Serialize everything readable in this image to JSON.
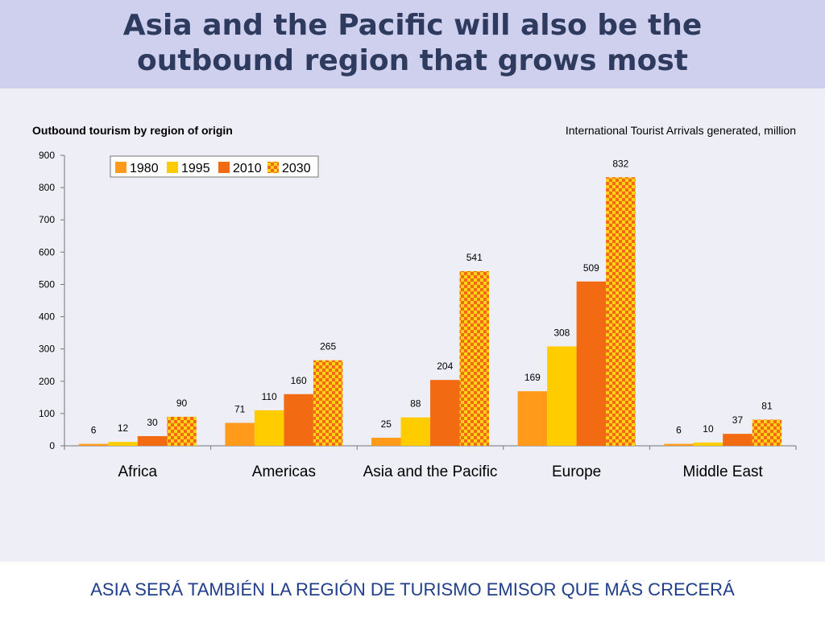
{
  "slide": {
    "title_line1": "Asia and the Pacific will also be the",
    "title_line2": "outbound region that grows most",
    "footer": "ASIA SERÁ TAMBIÉN LA REGIÓN DE TURISMO EMISOR QUE MÁS CRECERÁ"
  },
  "chart_data": {
    "type": "bar",
    "title": "Outbound tourism by region of origin",
    "subtitle": "International Tourist Arrivals generated, million",
    "categories": [
      "Africa",
      "Americas",
      "Asia and the Pacific",
      "Europe",
      "Middle East"
    ],
    "series": [
      {
        "name": "1980",
        "values": [
          6,
          71,
          25,
          169,
          6
        ],
        "color": "#ff9a1a",
        "pattern": "solid"
      },
      {
        "name": "1995",
        "values": [
          12,
          110,
          88,
          308,
          10
        ],
        "color": "#ffcc00",
        "pattern": "solid"
      },
      {
        "name": "2010",
        "values": [
          30,
          160,
          204,
          509,
          37
        ],
        "color": "#f26a12",
        "pattern": "solid"
      },
      {
        "name": "2030",
        "values": [
          90,
          265,
          541,
          832,
          81
        ],
        "color": "#f26a12",
        "pattern": "checkered-yellow"
      }
    ],
    "ylim": [
      0,
      900
    ],
    "yticks": [
      0,
      100,
      200,
      300,
      400,
      500,
      600,
      700,
      800,
      900
    ],
    "legend": "top-left",
    "grid": false
  }
}
